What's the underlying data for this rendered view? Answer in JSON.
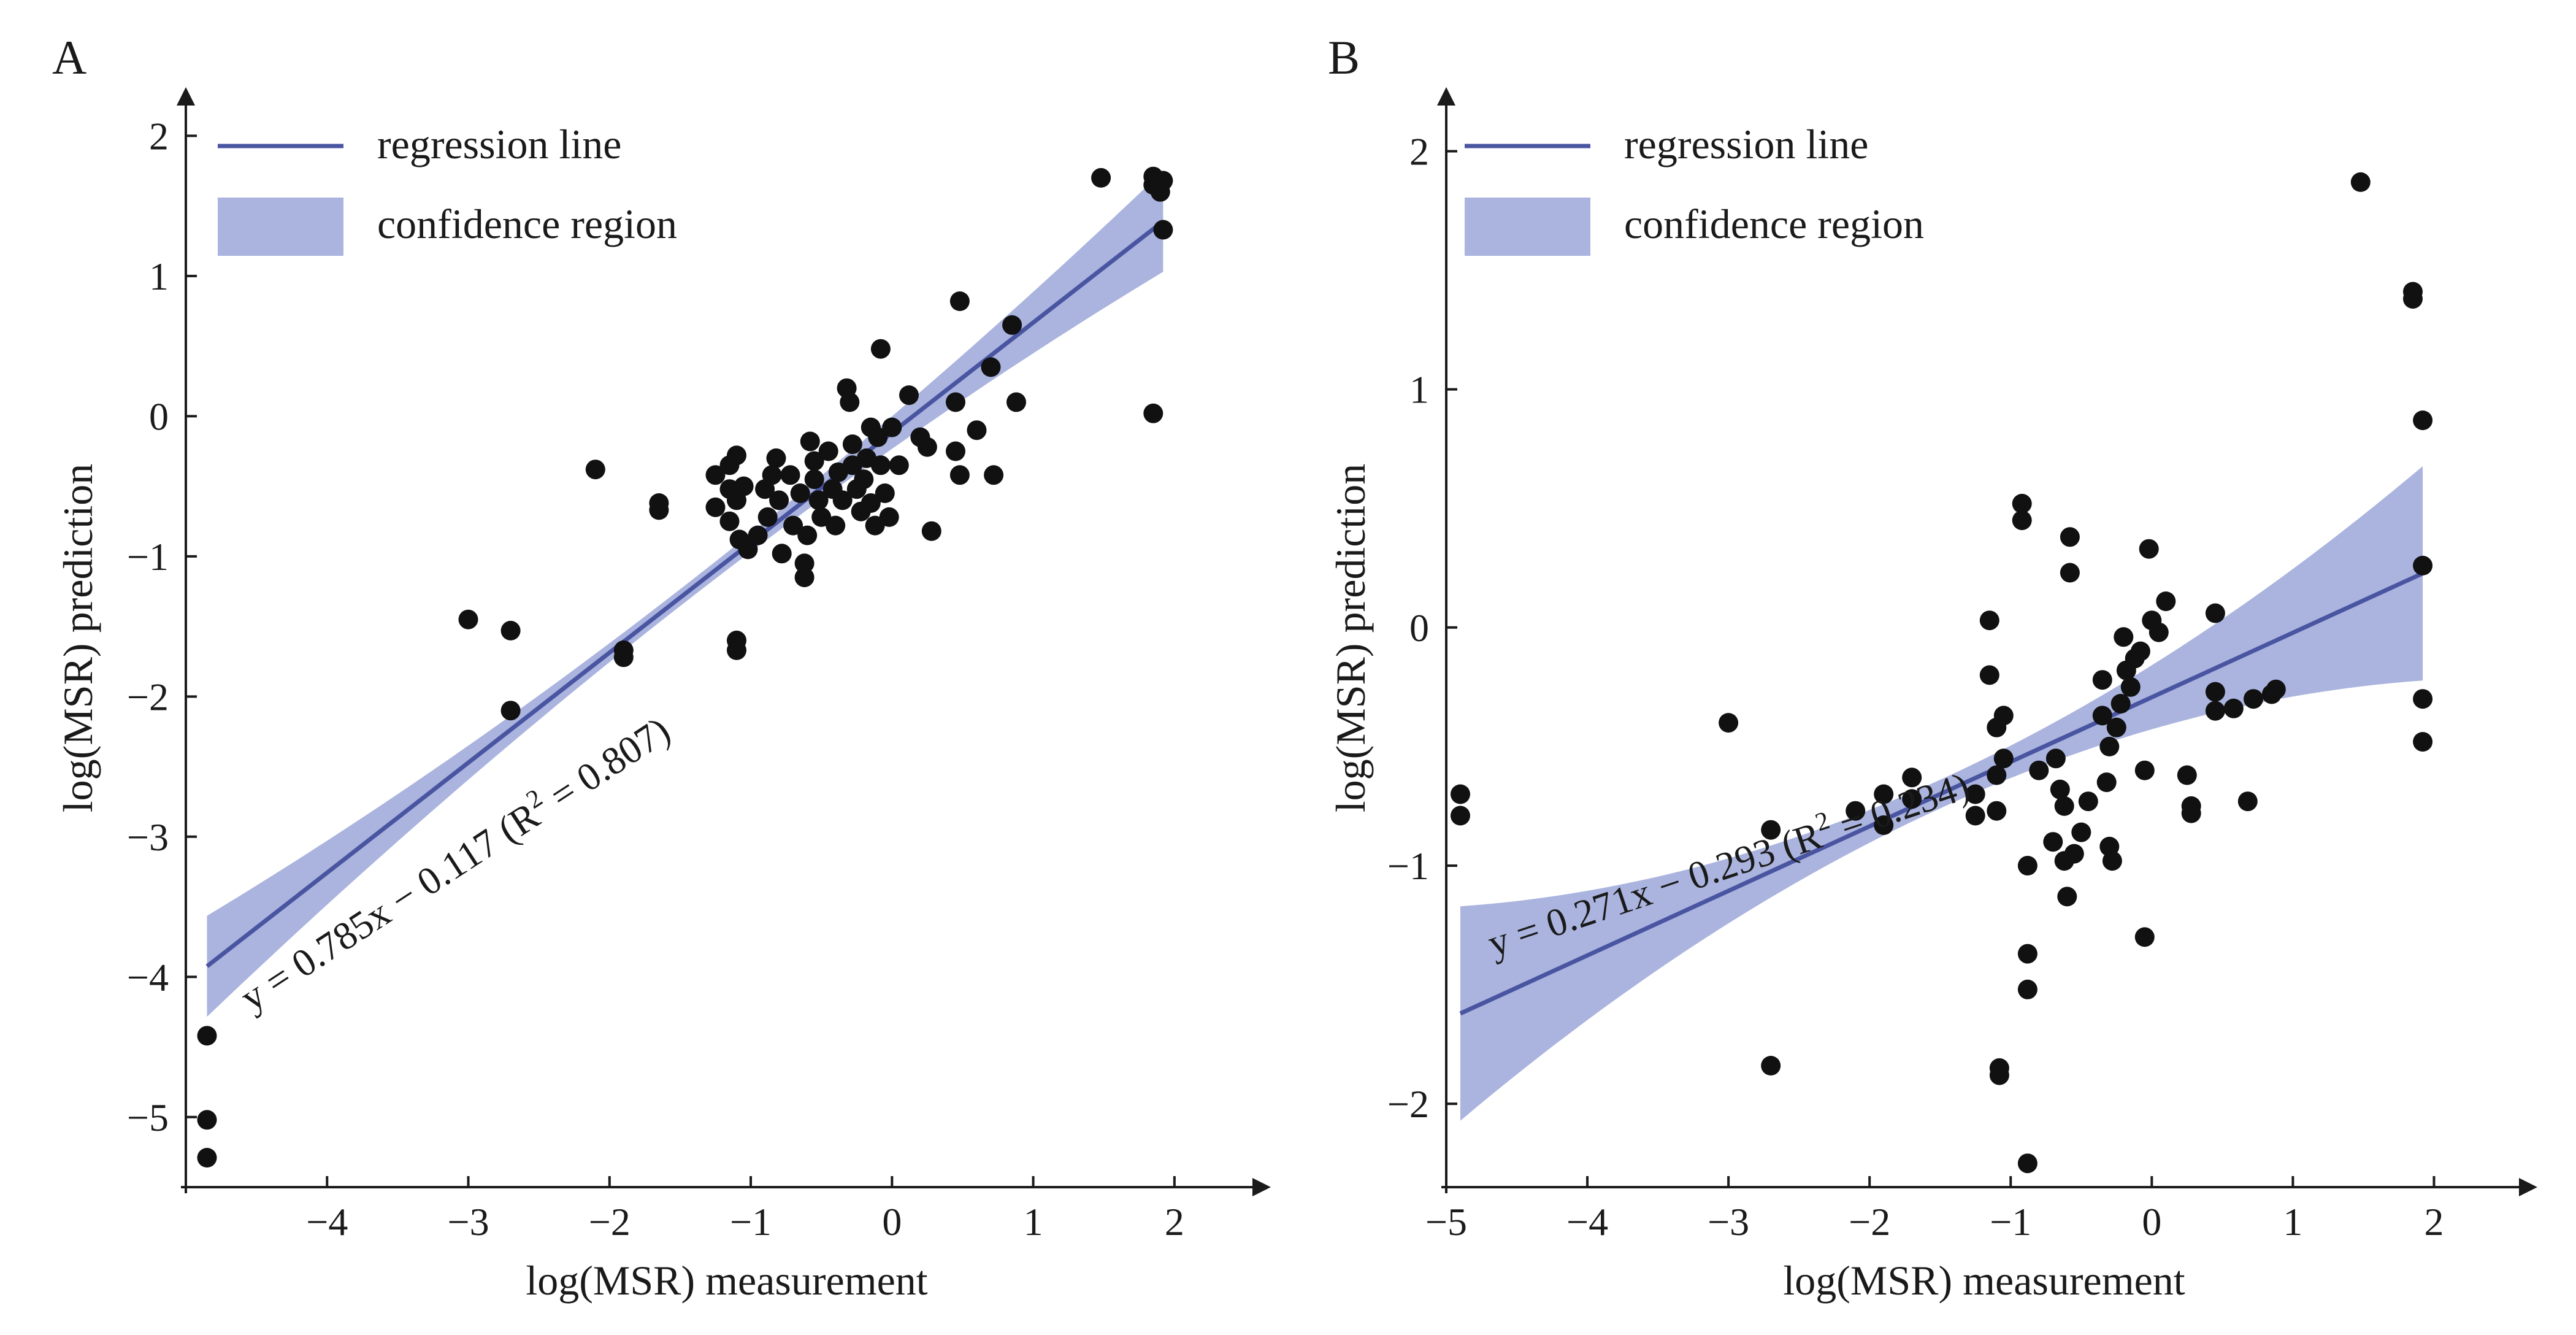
{
  "chart_data": [
    {
      "panel": "A",
      "type": "scatter",
      "xlabel": "log(MSR) measurement",
      "ylabel": "log(MSR) prediction",
      "xlim": [
        -5,
        2.5
      ],
      "ylim": [
        -5.5,
        2.4
      ],
      "xticks": [
        -4,
        -3,
        -2,
        -1,
        0,
        1,
        2
      ],
      "yticks": [
        -5,
        -4,
        -3,
        -2,
        -1,
        0,
        1,
        2
      ],
      "xtick_labels": [
        "−4",
        "−3",
        "−2",
        "−1",
        "0",
        "1",
        "2"
      ],
      "ytick_labels": [
        "−5",
        "−4",
        "−3",
        "−2",
        "−1",
        "0",
        "1",
        "2"
      ],
      "legend": [
        "regression line",
        "confidence region"
      ],
      "legend_position": "top-left",
      "regression": {
        "slope": 0.785,
        "intercept": -0.117,
        "r2": 0.807,
        "x_range": [
          -4.85,
          1.92
        ],
        "ci_half_width_ends": 0.36,
        "ci_half_width_center": 0.06
      },
      "annotation": {
        "text": "y = 0.785x − 0.117  (R",
        "sup": "2",
        "tail": " = 0.807)"
      },
      "points": [
        [
          -4.85,
          -4.42
        ],
        [
          -4.85,
          -5.02
        ],
        [
          -4.85,
          -5.29
        ],
        [
          -3.0,
          -1.45
        ],
        [
          -2.7,
          -1.53
        ],
        [
          -2.7,
          -2.1
        ],
        [
          -2.1,
          -0.38
        ],
        [
          -1.9,
          -1.67
        ],
        [
          -1.9,
          -1.72
        ],
        [
          -1.65,
          -0.62
        ],
        [
          -1.65,
          -0.67
        ],
        [
          -1.25,
          -0.42
        ],
        [
          -1.25,
          -0.65
        ],
        [
          -1.15,
          -0.35
        ],
        [
          -1.15,
          -0.52
        ],
        [
          -1.15,
          -0.75
        ],
        [
          -1.1,
          -0.28
        ],
        [
          -1.1,
          -0.6
        ],
        [
          -1.08,
          -0.88
        ],
        [
          -1.05,
          -0.5
        ],
        [
          -1.02,
          -0.95
        ],
        [
          -1.1,
          -1.6
        ],
        [
          -1.1,
          -1.67
        ],
        [
          -0.95,
          -0.85
        ],
        [
          -0.9,
          -0.52
        ],
        [
          -0.88,
          -0.72
        ],
        [
          -0.85,
          -0.42
        ],
        [
          -0.82,
          -0.3
        ],
        [
          -0.8,
          -0.6
        ],
        [
          -0.78,
          -0.98
        ],
        [
          -0.72,
          -0.42
        ],
        [
          -0.7,
          -0.78
        ],
        [
          -0.65,
          -0.55
        ],
        [
          -0.62,
          -1.05
        ],
        [
          -0.62,
          -1.15
        ],
        [
          -0.6,
          -0.85
        ],
        [
          -0.58,
          -0.18
        ],
        [
          -0.55,
          -0.32
        ],
        [
          -0.55,
          -0.45
        ],
        [
          -0.52,
          -0.6
        ],
        [
          -0.5,
          -0.72
        ],
        [
          -0.45,
          -0.25
        ],
        [
          -0.42,
          -0.52
        ],
        [
          -0.4,
          -0.78
        ],
        [
          -0.38,
          -0.4
        ],
        [
          -0.35,
          -0.6
        ],
        [
          -0.32,
          0.2
        ],
        [
          -0.3,
          0.1
        ],
        [
          -0.28,
          -0.2
        ],
        [
          -0.28,
          -0.35
        ],
        [
          -0.25,
          -0.52
        ],
        [
          -0.22,
          -0.68
        ],
        [
          -0.2,
          -0.45
        ],
        [
          -0.18,
          -0.3
        ],
        [
          -0.15,
          -0.08
        ],
        [
          -0.15,
          -0.62
        ],
        [
          -0.12,
          -0.78
        ],
        [
          -0.1,
          -0.15
        ],
        [
          -0.08,
          -0.35
        ],
        [
          -0.08,
          0.48
        ],
        [
          -0.05,
          -0.55
        ],
        [
          -0.02,
          -0.72
        ],
        [
          0.0,
          -0.08
        ],
        [
          0.05,
          -0.35
        ],
        [
          0.12,
          0.15
        ],
        [
          0.2,
          -0.15
        ],
        [
          0.25,
          -0.22
        ],
        [
          0.28,
          -0.82
        ],
        [
          0.45,
          0.1
        ],
        [
          0.45,
          -0.25
        ],
        [
          0.48,
          -0.42
        ],
        [
          0.48,
          0.82
        ],
        [
          0.6,
          -0.1
        ],
        [
          0.7,
          0.35
        ],
        [
          0.72,
          -0.42
        ],
        [
          0.85,
          0.65
        ],
        [
          0.88,
          0.1
        ],
        [
          1.48,
          1.7
        ],
        [
          1.85,
          1.71
        ],
        [
          1.85,
          1.65
        ],
        [
          1.9,
          1.65
        ],
        [
          1.9,
          1.6
        ],
        [
          1.92,
          1.68
        ],
        [
          1.92,
          1.33
        ],
        [
          1.85,
          0.02
        ]
      ]
    },
    {
      "panel": "B",
      "type": "scatter",
      "xlabel": "log(MSR) measurement",
      "ylabel": "log(MSR) prediction",
      "xlim": [
        -5,
        2.55
      ],
      "ylim": [
        -2.35,
        2.3
      ],
      "xticks": [
        -5,
        -4,
        -3,
        -2,
        -1,
        0,
        1,
        2
      ],
      "yticks": [
        -2,
        -1,
        0,
        1,
        2
      ],
      "xtick_labels": [
        "−5",
        "−4",
        "−3",
        "−2",
        "−1",
        "0",
        "1",
        "2"
      ],
      "ytick_labels": [
        "−2",
        "−1",
        "0",
        "1",
        "2"
      ],
      "legend": [
        "regression line",
        "confidence region"
      ],
      "legend_position": "top-left",
      "regression": {
        "slope": 0.271,
        "intercept": -0.293,
        "r2": 0.234,
        "x_range": [
          -4.9,
          1.92
        ],
        "ci_half_width_ends": 0.45,
        "ci_half_width_center": 0.06
      },
      "annotation": {
        "text": "y = 0.271x − 0.293 (R",
        "sup": "2",
        "tail": " = 0.234)"
      },
      "points": [
        [
          -4.9,
          -0.7
        ],
        [
          -4.9,
          -0.79
        ],
        [
          -3.0,
          -0.4
        ],
        [
          -2.7,
          -0.85
        ],
        [
          -2.7,
          -1.84
        ],
        [
          -2.1,
          -0.77
        ],
        [
          -1.9,
          -0.7
        ],
        [
          -1.9,
          -0.83
        ],
        [
          -1.7,
          -0.63
        ],
        [
          -1.7,
          -0.72
        ],
        [
          -1.25,
          -0.7
        ],
        [
          -1.25,
          -0.79
        ],
        [
          -1.15,
          0.03
        ],
        [
          -1.15,
          -0.2
        ],
        [
          -1.1,
          -0.42
        ],
        [
          -1.1,
          -0.62
        ],
        [
          -1.1,
          -0.77
        ],
        [
          -1.05,
          -0.37
        ],
        [
          -1.05,
          -0.55
        ],
        [
          -1.08,
          -1.85
        ],
        [
          -1.08,
          -1.88
        ],
        [
          -0.92,
          0.52
        ],
        [
          -0.92,
          0.45
        ],
        [
          -0.88,
          -1.0
        ],
        [
          -0.88,
          -1.37
        ],
        [
          -0.88,
          -1.52
        ],
        [
          -0.88,
          -2.25
        ],
        [
          -0.8,
          -0.6
        ],
        [
          -0.7,
          -0.9
        ],
        [
          -0.68,
          -0.55
        ],
        [
          -0.65,
          -0.68
        ],
        [
          -0.62,
          -0.75
        ],
        [
          -0.62,
          -0.98
        ],
        [
          -0.6,
          -1.13
        ],
        [
          -0.58,
          0.38
        ],
        [
          -0.58,
          0.23
        ],
        [
          -0.55,
          -0.95
        ],
        [
          -0.5,
          -0.86
        ],
        [
          -0.45,
          -0.73
        ],
        [
          -0.35,
          -0.22
        ],
        [
          -0.35,
          -0.37
        ],
        [
          -0.32,
          -0.65
        ],
        [
          -0.3,
          -0.92
        ],
        [
          -0.3,
          -0.5
        ],
        [
          -0.28,
          -0.98
        ],
        [
          -0.25,
          -0.42
        ],
        [
          -0.22,
          -0.32
        ],
        [
          -0.2,
          -0.04
        ],
        [
          -0.18,
          -0.18
        ],
        [
          -0.15,
          -0.25
        ],
        [
          -0.12,
          -0.13
        ],
        [
          -0.08,
          -0.1
        ],
        [
          -0.05,
          -0.6
        ],
        [
          -0.05,
          -1.3
        ],
        [
          -0.02,
          0.33
        ],
        [
          0.0,
          0.03
        ],
        [
          0.05,
          -0.02
        ],
        [
          0.1,
          0.11
        ],
        [
          0.25,
          -0.62
        ],
        [
          0.28,
          -0.75
        ],
        [
          0.28,
          -0.78
        ],
        [
          0.45,
          0.06
        ],
        [
          0.45,
          -0.27
        ],
        [
          0.45,
          -0.35
        ],
        [
          0.58,
          -0.34
        ],
        [
          0.68,
          -0.73
        ],
        [
          0.72,
          -0.3
        ],
        [
          0.85,
          -0.28
        ],
        [
          0.88,
          -0.26
        ],
        [
          1.48,
          1.87
        ],
        [
          1.85,
          1.41
        ],
        [
          1.85,
          1.38
        ],
        [
          1.92,
          0.87
        ],
        [
          1.92,
          0.26
        ],
        [
          1.92,
          -0.3
        ],
        [
          1.92,
          -0.48
        ]
      ]
    }
  ]
}
